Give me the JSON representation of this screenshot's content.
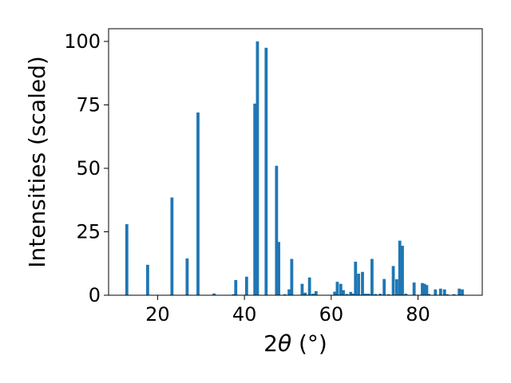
{
  "chart_data": {
    "type": "bar",
    "title": "",
    "xlabel_parts": {
      "prefix": "2",
      "theta": "θ",
      "unit": " (°)"
    },
    "ylabel": "Intensities (scaled)",
    "xlim": [
      8.7,
      94.8
    ],
    "ylim": [
      0,
      105
    ],
    "xticks": [
      20,
      40,
      60,
      80
    ],
    "yticks": [
      0,
      25,
      50,
      75,
      100
    ],
    "grid": false,
    "legend": "none",
    "bar_color": "#1f77b4",
    "bar_width": 0.7,
    "x": [
      12.9,
      17.7,
      23.3,
      26.8,
      29.3,
      33.0,
      37.5,
      38.0,
      40.5,
      42.4,
      43.0,
      45.0,
      47.4,
      47.9,
      49.3,
      50.3,
      50.9,
      53.3,
      54.0,
      55.0,
      55.8,
      56.5,
      60.8,
      61.4,
      62.2,
      62.8,
      63.6,
      64.5,
      65.0,
      65.6,
      66.3,
      67.2,
      67.9,
      68.6,
      69.4,
      70.2,
      71.3,
      72.2,
      73.2,
      74.3,
      75.1,
      75.8,
      76.4,
      77.2,
      79.1,
      81.0,
      81.5,
      82.0,
      82.5,
      84.0,
      85.2,
      86.1,
      86.7,
      88.3,
      89.5,
      90.2
    ],
    "values": [
      28,
      12,
      38.5,
      14.5,
      72,
      0.7,
      0.4,
      6,
      7.3,
      75.5,
      100,
      97.5,
      51,
      21,
      0.4,
      2.3,
      14.3,
      4.5,
      1,
      7,
      0.6,
      1.6,
      1.4,
      5.3,
      4.5,
      2,
      0.5,
      1.3,
      0.6,
      13.2,
      8.5,
      9.2,
      0.6,
      0.6,
      14.3,
      0.5,
      0.6,
      6.4,
      0.4,
      11.5,
      6.3,
      21.5,
      19.5,
      0.6,
      5,
      4.8,
      4.5,
      4,
      0.5,
      2.3,
      2.6,
      2.3,
      0.4,
      0.4,
      2.6,
      2.3
    ]
  }
}
